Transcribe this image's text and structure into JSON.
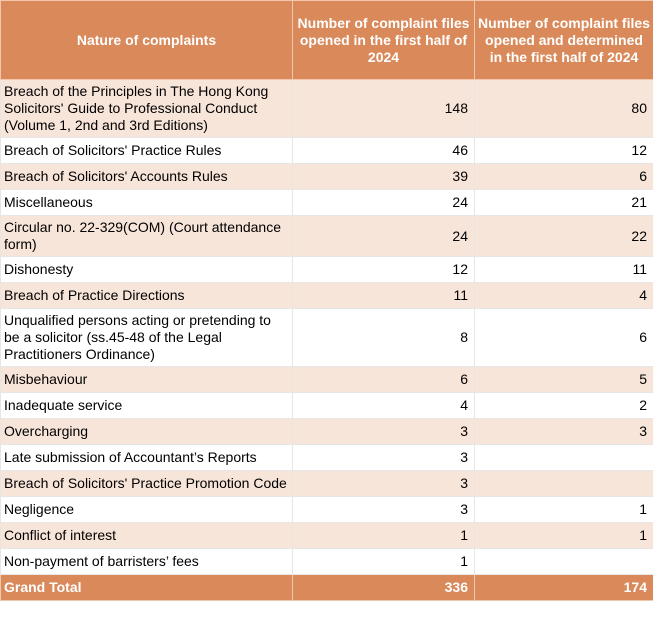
{
  "table": {
    "header": [
      "Nature of complaints",
      "Number of complaint files opened in the first half of 2024",
      "Number of complaint files opened and determined in the first half of 2024"
    ],
    "rows": [
      [
        "Breach of the Principles in The Hong Kong Solicitors' Guide to Professional Conduct (Volume 1, 2nd and 3rd Editions)",
        "148",
        "80"
      ],
      [
        "Breach of Solicitors' Practice Rules",
        "46",
        "12"
      ],
      [
        "Breach of Solicitors' Accounts Rules",
        "39",
        "6"
      ],
      [
        "Miscellaneous",
        "24",
        "21"
      ],
      [
        "Circular no. 22-329(COM) (Court attendance form)",
        "24",
        "22"
      ],
      [
        "Dishonesty",
        "12",
        "11"
      ],
      [
        "Breach of Practice Directions",
        "11",
        "4"
      ],
      [
        "Unqualified persons acting or pretending to be a solicitor (ss.45-48 of the Legal Practitioners Ordinance)",
        "8",
        "6"
      ],
      [
        "Misbehaviour",
        "6",
        "5"
      ],
      [
        "Inadequate service",
        "4",
        "2"
      ],
      [
        "Overcharging",
        "3",
        "3"
      ],
      [
        "Late submission of Accountant’s Reports",
        "3",
        null
      ],
      [
        "Breach of Solicitors' Practice Promotion Code",
        "3",
        null
      ],
      [
        "Negligence",
        "3",
        "1"
      ],
      [
        "Conflict of interest",
        "1",
        "1"
      ],
      [
        "Non-payment of barristers’ fees",
        "1",
        null
      ]
    ],
    "total": [
      "Grand Total",
      "336",
      "174"
    ]
  }
}
